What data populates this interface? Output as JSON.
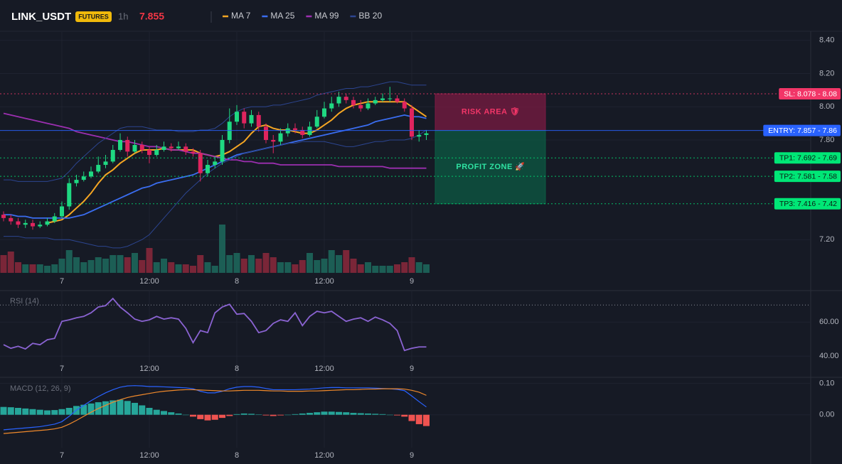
{
  "header": {
    "symbol": "LINK_USDT",
    "badge": "FUTURES",
    "interval": "1h",
    "price": 7.855
  },
  "chart_data": [
    {
      "type": "candlestick",
      "categories": [
        null,
        null,
        null,
        null,
        null,
        null,
        null,
        null,
        "7",
        null,
        null,
        null,
        null,
        null,
        null,
        null,
        null,
        null,
        null,
        null,
        "12:00",
        null,
        null,
        null,
        null,
        null,
        null,
        null,
        null,
        null,
        null,
        null,
        "8",
        null,
        null,
        null,
        null,
        null,
        null,
        null,
        null,
        null,
        null,
        null,
        "12:00",
        null,
        null,
        null,
        null,
        null,
        null,
        null,
        null,
        null,
        null,
        null,
        "9",
        null,
        null
      ],
      "open": [
        7.35,
        7.33,
        7.31,
        7.29,
        7.3,
        7.28,
        7.29,
        7.31,
        7.34,
        7.4,
        7.54,
        7.56,
        7.58,
        7.61,
        7.65,
        7.67,
        7.74,
        7.8,
        7.73,
        7.77,
        7.74,
        7.71,
        7.74,
        7.76,
        7.75,
        7.76,
        7.73,
        7.72,
        7.6,
        7.65,
        7.67,
        7.8,
        7.91,
        7.97,
        7.9,
        7.95,
        7.88,
        7.8,
        7.79,
        7.84,
        7.87,
        7.86,
        7.83,
        7.88,
        7.94,
        7.99,
        8.02,
        8.06,
        8.04,
        8.01,
        7.99,
        8.02,
        8.04,
        8.05,
        8.05,
        8.03,
        7.99,
        7.82,
        7.83
      ],
      "high": [
        7.37,
        7.35,
        7.33,
        7.32,
        7.32,
        7.31,
        7.33,
        7.36,
        7.43,
        7.57,
        7.59,
        7.61,
        7.64,
        7.7,
        7.71,
        7.77,
        7.84,
        7.82,
        7.8,
        7.79,
        7.76,
        7.77,
        7.79,
        7.78,
        7.79,
        7.78,
        7.75,
        7.74,
        7.68,
        7.7,
        7.83,
        7.99,
        8.01,
        7.99,
        7.98,
        7.97,
        7.9,
        7.83,
        7.87,
        7.9,
        7.9,
        7.88,
        7.91,
        7.98,
        8.03,
        8.06,
        8.09,
        8.08,
        8.06,
        8.04,
        8.05,
        8.06,
        8.08,
        8.12,
        8.07,
        8.05,
        8.01,
        7.86,
        7.86
      ],
      "low": [
        7.31,
        7.29,
        7.27,
        7.27,
        7.26,
        7.27,
        7.28,
        7.3,
        7.33,
        7.38,
        7.52,
        7.55,
        7.57,
        7.6,
        7.63,
        7.66,
        7.73,
        7.7,
        7.72,
        7.72,
        7.66,
        7.7,
        7.73,
        7.73,
        7.74,
        7.71,
        7.7,
        7.55,
        7.58,
        7.63,
        7.65,
        7.78,
        7.89,
        7.87,
        7.88,
        7.85,
        7.78,
        7.72,
        7.77,
        7.82,
        7.84,
        7.81,
        7.82,
        7.87,
        7.93,
        7.97,
        8.0,
        8.02,
        7.99,
        7.97,
        7.98,
        8.01,
        8.03,
        8.03,
        8.02,
        7.97,
        7.8,
        7.79,
        7.8
      ],
      "close": [
        7.33,
        7.31,
        7.29,
        7.3,
        7.28,
        7.29,
        7.31,
        7.34,
        7.4,
        7.54,
        7.56,
        7.58,
        7.61,
        7.65,
        7.67,
        7.74,
        7.8,
        7.73,
        7.77,
        7.74,
        7.71,
        7.74,
        7.76,
        7.75,
        7.76,
        7.73,
        7.72,
        7.6,
        7.65,
        7.67,
        7.8,
        7.91,
        7.97,
        7.9,
        7.95,
        7.88,
        7.8,
        7.79,
        7.84,
        7.87,
        7.86,
        7.83,
        7.88,
        7.94,
        7.99,
        8.02,
        8.06,
        8.04,
        8.01,
        7.99,
        8.02,
        8.04,
        8.05,
        8.05,
        8.03,
        7.99,
        7.82,
        7.83,
        7.84
      ],
      "volume": [
        25,
        30,
        15,
        12,
        12,
        12,
        10,
        12,
        20,
        32,
        22,
        15,
        18,
        22,
        20,
        25,
        25,
        22,
        28,
        18,
        35,
        15,
        20,
        15,
        12,
        12,
        10,
        25,
        15,
        10,
        68,
        25,
        28,
        20,
        25,
        20,
        28,
        22,
        15,
        15,
        12,
        18,
        28,
        18,
        20,
        32,
        25,
        32,
        20,
        12,
        15,
        10,
        10,
        10,
        12,
        15,
        22,
        15,
        12
      ],
      "up_color": "#1fd882",
      "down_color": "#e0245e",
      "volume_up_color": "#1c5e55",
      "volume_down_color": "#7a2638",
      "series": [
        {
          "name": "MA 7",
          "color": "#f5a623",
          "values": [
            null,
            null,
            null,
            null,
            null,
            null,
            7.3,
            7.31,
            7.32,
            7.35,
            7.39,
            7.43,
            7.48,
            7.54,
            7.59,
            7.62,
            7.66,
            7.69,
            7.72,
            7.74,
            7.74,
            7.74,
            7.75,
            7.74,
            7.74,
            7.74,
            7.74,
            7.72,
            7.71,
            7.7,
            7.71,
            7.73,
            7.76,
            7.79,
            7.84,
            7.88,
            7.89,
            7.87,
            7.86,
            7.86,
            7.85,
            7.84,
            7.84,
            7.86,
            7.89,
            7.92,
            7.96,
            7.99,
            8.01,
            8.02,
            8.03,
            8.03,
            8.03,
            8.03,
            8.03,
            8.03,
            8.0,
            7.97,
            7.94
          ]
        },
        {
          "name": "MA 25",
          "color": "#3a6df0",
          "values": [
            7.35,
            7.35,
            7.34,
            7.34,
            7.33,
            7.33,
            7.33,
            7.33,
            7.33,
            7.33,
            7.34,
            7.35,
            7.37,
            7.39,
            7.41,
            7.43,
            7.45,
            7.47,
            7.49,
            7.51,
            7.52,
            7.54,
            7.55,
            7.56,
            7.57,
            7.58,
            7.59,
            7.61,
            7.63,
            7.65,
            7.67,
            7.69,
            7.71,
            7.72,
            7.73,
            7.74,
            7.75,
            7.76,
            7.77,
            7.78,
            7.79,
            7.8,
            7.81,
            7.82,
            7.83,
            7.84,
            7.85,
            7.86,
            7.87,
            7.88,
            7.89,
            7.91,
            7.92,
            7.93,
            7.94,
            7.95,
            7.94,
            7.94,
            7.93
          ]
        },
        {
          "name": "MA 99",
          "color": "#9c2fb0",
          "values": [
            7.96,
            7.95,
            7.94,
            7.93,
            7.92,
            7.91,
            7.9,
            7.89,
            7.88,
            7.87,
            7.85,
            7.84,
            7.83,
            7.82,
            7.81,
            7.8,
            7.79,
            7.79,
            7.78,
            7.77,
            7.76,
            7.76,
            7.75,
            7.74,
            7.74,
            7.73,
            7.72,
            7.72,
            7.71,
            7.7,
            7.69,
            7.68,
            7.68,
            7.67,
            7.67,
            7.66,
            7.66,
            7.66,
            7.65,
            7.65,
            7.65,
            7.65,
            7.65,
            7.65,
            7.65,
            7.65,
            7.64,
            7.64,
            7.64,
            7.64,
            7.64,
            7.64,
            7.64,
            7.63,
            7.63,
            7.63,
            7.63,
            7.63,
            7.63
          ]
        },
        {
          "name": "BB 20",
          "color": "#2c4590",
          "upper": [
            7.56,
            7.56,
            7.55,
            7.55,
            7.55,
            7.55,
            7.55,
            7.56,
            7.57,
            7.61,
            7.66,
            7.7,
            7.74,
            7.78,
            7.81,
            7.84,
            7.87,
            7.88,
            7.88,
            7.88,
            7.87,
            7.86,
            7.86,
            7.86,
            7.85,
            7.85,
            7.85,
            7.86,
            7.86,
            7.87,
            7.9,
            7.94,
            7.97,
            7.99,
            8.0,
            8.0,
            8.0,
            8.01,
            8.01,
            8.02,
            8.03,
            8.04,
            8.05,
            8.07,
            8.08,
            8.09,
            8.1,
            8.11,
            8.11,
            8.12,
            8.12,
            8.13,
            8.14,
            8.15,
            8.15,
            8.14,
            8.13,
            8.13,
            8.13
          ],
          "lower": [
            7.22,
            7.22,
            7.22,
            7.21,
            7.21,
            7.21,
            7.21,
            7.2,
            7.2,
            7.2,
            7.19,
            7.18,
            7.17,
            7.16,
            7.16,
            7.15,
            7.15,
            7.16,
            7.18,
            7.2,
            7.23,
            7.28,
            7.33,
            7.38,
            7.43,
            7.48,
            7.52,
            7.56,
            7.6,
            7.63,
            7.66,
            7.68,
            7.7,
            7.72,
            7.73,
            7.74,
            7.75,
            7.76,
            7.77,
            7.78,
            7.78,
            7.79,
            7.79,
            7.79,
            7.79,
            7.78,
            7.77,
            7.76,
            7.76,
            7.77,
            7.78,
            7.79,
            7.79,
            7.8,
            7.8,
            7.8,
            7.81,
            7.83,
            7.86
          ]
        }
      ],
      "ylim": [
        7.0,
        8.45
      ],
      "yticks": [
        {
          "value": 8.4,
          "label": "8.40"
        },
        {
          "value": 8.2,
          "label": "8.20"
        },
        {
          "value": 8,
          "label": "8.00"
        },
        {
          "value": 7.8,
          "label": "7.80"
        },
        {
          "value": 7.2,
          "label": "7.20"
        }
      ],
      "levels": [
        {
          "label": "SL: 8.078 - 8.08",
          "value": 8.078,
          "color": "#f23668",
          "text_color": "#ffffff",
          "style": "dotted"
        },
        {
          "label": "ENTRY: 7.857 - 7.86",
          "value": 7.857,
          "color": "#2962ff",
          "text_color": "#ffffff",
          "style": "solid"
        },
        {
          "label": "TP1: 7.692 - 7.69",
          "value": 7.692,
          "color": "#00e676",
          "text_color": "#0b1a12",
          "style": "dotted"
        },
        {
          "label": "TP2: 7.581 - 7.58",
          "value": 7.581,
          "color": "#00e676",
          "text_color": "#0b1a12",
          "style": "dotted"
        },
        {
          "label": "TP3: 7.416 - 7.42",
          "value": 7.416,
          "color": "#00e676",
          "text_color": "#0b1a12",
          "style": "dotted"
        }
      ],
      "zones": [
        {
          "label": "RISK AREA 🛡",
          "top": 8.078,
          "bottom": 7.857,
          "color": "#7a1b42",
          "text_color": "#f23668"
        },
        {
          "label": "PROFIT ZONE 🚀",
          "top": 7.857,
          "bottom": 7.416,
          "color": "#0c5a43",
          "text_color": "#2fe3a2"
        }
      ]
    },
    {
      "type": "line",
      "title": "RSI (14)",
      "categories": [
        null,
        null,
        null,
        null,
        null,
        null,
        null,
        null,
        "7",
        null,
        null,
        null,
        null,
        null,
        null,
        null,
        null,
        null,
        null,
        null,
        "12:00",
        null,
        null,
        null,
        null,
        null,
        null,
        null,
        null,
        null,
        null,
        null,
        "8",
        null,
        null,
        null,
        null,
        null,
        null,
        null,
        null,
        null,
        null,
        null,
        "12:00",
        null,
        null,
        null,
        null,
        null,
        null,
        null,
        null,
        null,
        null,
        null,
        "9",
        null,
        null
      ],
      "values": [
        46.7,
        44.6,
        45.8,
        44.2,
        47.5,
        46.7,
        49.6,
        50.4,
        60.4,
        61.3,
        62.5,
        63.3,
        65.4,
        68.8,
        69.6,
        73.8,
        68.8,
        65.4,
        61.7,
        60.4,
        61.3,
        63.3,
        61.7,
        62.5,
        61.7,
        56.3,
        47.9,
        55.0,
        53.8,
        65.4,
        68.8,
        70.4,
        64.6,
        65.0,
        60.4,
        53.8,
        55.0,
        59.2,
        61.3,
        60.4,
        65.4,
        57.9,
        63.3,
        66.3,
        65.4,
        66.3,
        63.3,
        60.4,
        61.7,
        62.5,
        60.4,
        62.9,
        61.3,
        59.2,
        55.0,
        43.3,
        44.6,
        45.4,
        45.4
      ],
      "color": "#8a63d2",
      "ylim": [
        28,
        78
      ],
      "yticks": [
        {
          "value": 60,
          "label": "60.00"
        },
        {
          "value": 40,
          "label": "40.00"
        }
      ],
      "level": 70
    },
    {
      "type": "macd",
      "title": "MACD (12, 26, 9)",
      "categories": [
        null,
        null,
        null,
        null,
        null,
        null,
        null,
        null,
        "7",
        null,
        null,
        null,
        null,
        null,
        null,
        null,
        null,
        null,
        null,
        null,
        "12:00",
        null,
        null,
        null,
        null,
        null,
        null,
        null,
        null,
        null,
        null,
        null,
        "8",
        null,
        null,
        null,
        null,
        null,
        null,
        null,
        null,
        null,
        null,
        null,
        "12:00",
        null,
        null,
        null,
        null,
        null,
        null,
        null,
        null,
        null,
        null,
        null,
        "9",
        null,
        null
      ],
      "histogram": [
        0.025,
        0.024,
        0.022,
        0.02,
        0.018,
        0.016,
        0.014,
        0.015,
        0.018,
        0.022,
        0.028,
        0.032,
        0.036,
        0.04,
        0.043,
        0.046,
        0.048,
        0.044,
        0.038,
        0.03,
        0.022,
        0.016,
        0.012,
        0.008,
        0.004,
        0,
        -0.006,
        -0.014,
        -0.018,
        -0.016,
        -0.01,
        -0.004,
        0.002,
        0.004,
        0.003,
        0.001,
        -0.002,
        -0.004,
        -0.002,
        0,
        0.002,
        0.004,
        0.006,
        0.008,
        0.01,
        0.01,
        0.009,
        0.008,
        0.006,
        0.005,
        0.004,
        0.003,
        0.002,
        0,
        -0.002,
        -0.006,
        -0.02,
        -0.03,
        -0.036
      ],
      "macd": [
        -0.048,
        -0.046,
        -0.044,
        -0.042,
        -0.04,
        -0.038,
        -0.034,
        -0.03,
        -0.022,
        -0.005,
        0.015,
        0.03,
        0.045,
        0.058,
        0.07,
        0.08,
        0.088,
        0.092,
        0.093,
        0.092,
        0.09,
        0.09,
        0.089,
        0.088,
        0.087,
        0.086,
        0.083,
        0.075,
        0.07,
        0.07,
        0.075,
        0.083,
        0.088,
        0.09,
        0.09,
        0.088,
        0.084,
        0.08,
        0.08,
        0.08,
        0.08,
        0.081,
        0.082,
        0.084,
        0.086,
        0.087,
        0.087,
        0.086,
        0.086,
        0.086,
        0.086,
        0.085,
        0.084,
        0.083,
        0.081,
        0.077,
        0.06,
        0.042,
        0.025
      ],
      "signal": [
        -0.06,
        -0.058,
        -0.056,
        -0.054,
        -0.052,
        -0.05,
        -0.048,
        -0.045,
        -0.04,
        -0.03,
        -0.018,
        -0.005,
        0.008,
        0.02,
        0.03,
        0.04,
        0.048,
        0.055,
        0.06,
        0.064,
        0.068,
        0.072,
        0.075,
        0.077,
        0.079,
        0.08,
        0.08,
        0.079,
        0.078,
        0.077,
        0.076,
        0.076,
        0.077,
        0.078,
        0.078,
        0.078,
        0.077,
        0.076,
        0.076,
        0.075,
        0.075,
        0.075,
        0.076,
        0.076,
        0.077,
        0.078,
        0.079,
        0.08,
        0.08,
        0.081,
        0.082,
        0.082,
        0.083,
        0.083,
        0.083,
        0.082,
        0.078,
        0.072,
        0.062
      ],
      "macd_color": "#2962ff",
      "signal_color": "#f0892b",
      "up_color": "#26a69a",
      "down_color": "#ef5350",
      "ylim": [
        -0.105,
        0.115
      ],
      "yticks": [
        {
          "value": 0.1,
          "label": "0.10"
        },
        {
          "value": 0,
          "label": "0.00"
        }
      ]
    }
  ]
}
